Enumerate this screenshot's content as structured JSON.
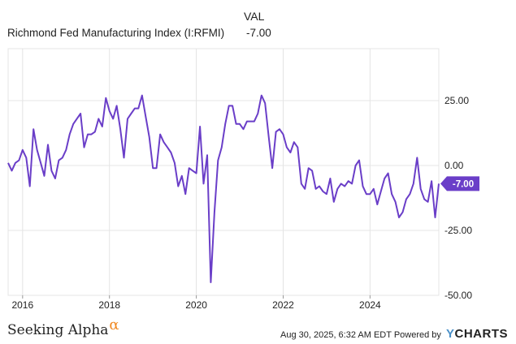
{
  "legend": {
    "header": "VAL",
    "series_name": "Richmond Fed Manufacturing Index (I:RFMI)",
    "last_value": "-7.00"
  },
  "footer": {
    "logo_text": "Seeking Alpha",
    "logo_symbol": "α",
    "timestamp": "Aug 30, 2025, 6:32 AM EDT Powered by",
    "brand_y": "Y",
    "brand_rest": "CHARTS"
  },
  "colors": {
    "line": "#6a3ec8",
    "accent": "#f08a24",
    "grid": "#e4e4e4",
    "brand_blue": "#4a90c8"
  },
  "chart_data": {
    "type": "line",
    "title": "",
    "xlabel": "",
    "ylabel": "",
    "ylim": [
      -50,
      45
    ],
    "xlim": [
      "2015-09",
      "2025-08"
    ],
    "y_ticks": [
      {
        "value": 25,
        "label": "25.00"
      },
      {
        "value": 0,
        "label": "0.00"
      },
      {
        "value": -25,
        "label": "-25.00"
      },
      {
        "value": -50,
        "label": "-50.00"
      }
    ],
    "x_ticks": [
      "2016",
      "2018",
      "2020",
      "2022",
      "2024"
    ],
    "last_value_label": "-7.00",
    "grid": true,
    "series": [
      {
        "name": "Richmond Fed Manufacturing Index (I:RFMI)",
        "x": [
          "2015-09",
          "2015-10",
          "2015-11",
          "2015-12",
          "2016-01",
          "2016-02",
          "2016-03",
          "2016-04",
          "2016-05",
          "2016-06",
          "2016-07",
          "2016-08",
          "2016-09",
          "2016-10",
          "2016-11",
          "2016-12",
          "2017-01",
          "2017-02",
          "2017-03",
          "2017-04",
          "2017-05",
          "2017-06",
          "2017-07",
          "2017-08",
          "2017-09",
          "2017-10",
          "2017-11",
          "2017-12",
          "2018-01",
          "2018-02",
          "2018-03",
          "2018-04",
          "2018-05",
          "2018-06",
          "2018-07",
          "2018-08",
          "2018-09",
          "2018-10",
          "2018-11",
          "2018-12",
          "2019-01",
          "2019-02",
          "2019-03",
          "2019-04",
          "2019-05",
          "2019-06",
          "2019-07",
          "2019-08",
          "2019-09",
          "2019-10",
          "2019-11",
          "2019-12",
          "2020-01",
          "2020-02",
          "2020-03",
          "2020-04",
          "2020-05",
          "2020-06",
          "2020-07",
          "2020-08",
          "2020-09",
          "2020-10",
          "2020-11",
          "2020-12",
          "2021-01",
          "2021-02",
          "2021-03",
          "2021-04",
          "2021-05",
          "2021-06",
          "2021-07",
          "2021-08",
          "2021-09",
          "2021-10",
          "2021-11",
          "2021-12",
          "2022-01",
          "2022-02",
          "2022-03",
          "2022-04",
          "2022-05",
          "2022-06",
          "2022-07",
          "2022-08",
          "2022-09",
          "2022-10",
          "2022-11",
          "2022-12",
          "2023-01",
          "2023-02",
          "2023-03",
          "2023-04",
          "2023-05",
          "2023-06",
          "2023-07",
          "2023-08",
          "2023-09",
          "2023-10",
          "2023-11",
          "2023-12",
          "2024-01",
          "2024-02",
          "2024-03",
          "2024-04",
          "2024-05",
          "2024-06",
          "2024-07",
          "2024-08",
          "2024-09",
          "2024-10",
          "2024-11",
          "2024-12",
          "2025-01",
          "2025-02",
          "2025-03",
          "2025-04",
          "2025-05",
          "2025-06",
          "2025-07",
          "2025-08"
        ],
        "y": [
          1,
          -2,
          1,
          2,
          6,
          3,
          -8,
          14,
          6,
          1,
          -4,
          8,
          -2,
          -5,
          2,
          3,
          6,
          12,
          16,
          18,
          20,
          7,
          12,
          12,
          13,
          18,
          15,
          26,
          21,
          18,
          23,
          14,
          3,
          18,
          20,
          22,
          22,
          27,
          19,
          11,
          -1,
          -1,
          12,
          9,
          7,
          5,
          1,
          -8,
          -4,
          -11,
          -1,
          -2,
          -3,
          15,
          -7,
          4,
          -45,
          -18,
          2,
          7,
          16,
          23,
          23,
          16,
          16,
          14,
          17,
          17,
          17,
          20,
          27,
          24,
          11,
          -1,
          13,
          14,
          12,
          7,
          5,
          9,
          7,
          -7,
          -9,
          -1,
          -2,
          -9,
          -8,
          -10,
          -11,
          -5,
          -14,
          -9,
          -7,
          -8,
          -6,
          -7,
          0,
          2,
          -8,
          -11,
          -11,
          -9,
          -15,
          -10,
          -5,
          -3,
          -11,
          -14,
          -20,
          -18,
          -13,
          -11,
          -7,
          3,
          -9,
          -13,
          -14,
          -6,
          -20,
          -7
        ]
      }
    ]
  }
}
